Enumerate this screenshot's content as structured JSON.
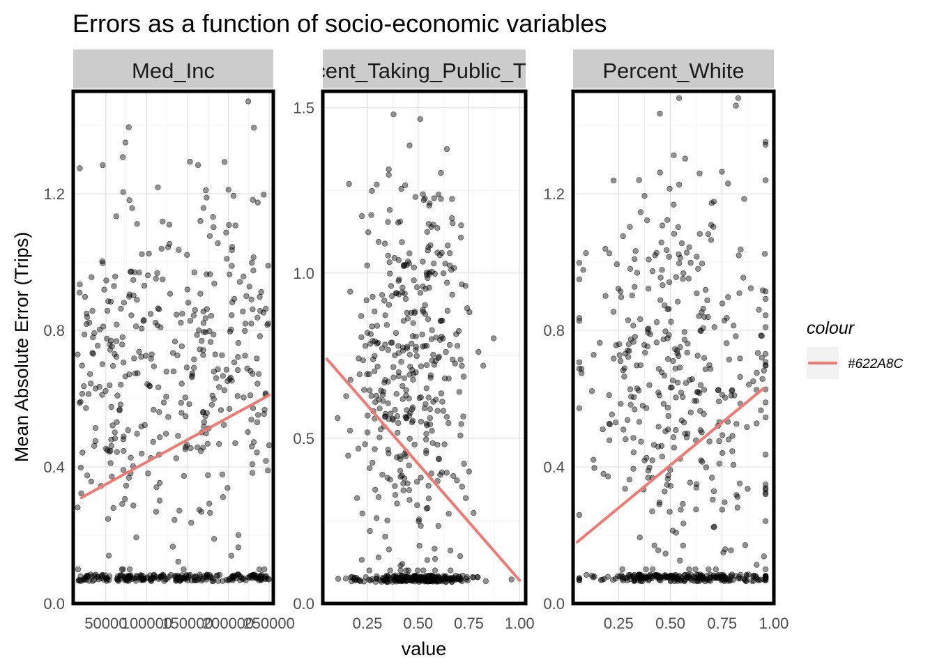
{
  "chart_data": {
    "type": "scatter",
    "title": "Errors as a function of socio-economic variables",
    "xlabel": "value",
    "ylabel": "Mean Absolute Error (Trips)",
    "legend": {
      "title": "colour",
      "label": "#622A8C",
      "color": "#f07a73",
      "placement": "right"
    },
    "point_color": "#000000",
    "fit_color": "#f07a73",
    "grid": true,
    "panels": [
      {
        "strip": "Med_Inc",
        "xlim": [
          10000,
          255000
        ],
        "ylim": [
          0,
          1.5
        ],
        "xticks": [
          50000,
          100000,
          150000,
          200000,
          250000
        ],
        "xtick_labels": [
          "50000",
          "100000",
          "150000",
          "200000",
          "250000"
        ],
        "yticks": [
          0.0,
          0.4,
          0.8,
          1.2
        ],
        "ytick_labels": [
          "0.0",
          "0.4",
          "0.8",
          "1.2"
        ],
        "fit": {
          "x": [
            20000,
            250000
          ],
          "y": [
            0.31,
            0.61
          ]
        },
        "n_points": 600
      },
      {
        "strip": "Percent_Taking_Public_Trans",
        "xlim": [
          0.03,
          1.03
        ],
        "ylim": [
          0,
          1.55
        ],
        "xticks": [
          0.25,
          0.5,
          0.75,
          1.0
        ],
        "xtick_labels": [
          "0.25",
          "0.50",
          "0.75",
          "1.00"
        ],
        "yticks": [
          0.0,
          0.5,
          1.0,
          1.5
        ],
        "ytick_labels": [
          "0.0",
          "0.5",
          "1.0",
          "1.5"
        ],
        "fit": {
          "x": [
            0.05,
            1.0
          ],
          "y": [
            0.74,
            0.07
          ]
        },
        "n_points": 600
      },
      {
        "strip": "Percent_White",
        "xlim": [
          0.03,
          1.0
        ],
        "ylim": [
          0,
          1.5
        ],
        "xticks": [
          0.25,
          0.5,
          0.75,
          1.0
        ],
        "xtick_labels": [
          "0.25",
          "0.50",
          "0.75",
          "1.00"
        ],
        "yticks": [
          0.0,
          0.4,
          0.8,
          1.2
        ],
        "ytick_labels": [
          "0.0",
          "0.4",
          "0.8",
          "1.2"
        ],
        "fit": {
          "x": [
            0.05,
            0.95
          ],
          "y": [
            0.18,
            0.63
          ]
        },
        "n_points": 600
      }
    ]
  }
}
